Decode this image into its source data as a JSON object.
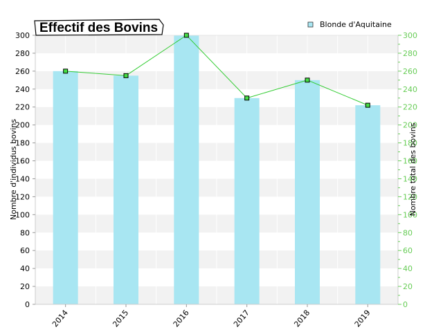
{
  "chart_data": {
    "type": "bar",
    "title": "Effectif des Bovins",
    "categories": [
      "2014",
      "2015",
      "2016",
      "2017",
      "2018",
      "2019"
    ],
    "series": [
      {
        "name": "Blonde d'Aquitaine",
        "type": "bar",
        "values": [
          260,
          255,
          300,
          230,
          250,
          222
        ]
      },
      {
        "type": "line",
        "axis": "right",
        "values": [
          260,
          255,
          300,
          230,
          250,
          222
        ]
      }
    ],
    "ylabel": "Nombre d'individus bovins",
    "y2label": "Nombre total des bovins",
    "ylim": [
      0,
      300
    ],
    "y2lim": [
      0,
      300
    ],
    "yticks": [
      "0",
      "20",
      "40",
      "60",
      "80",
      "100",
      "120",
      "140",
      "160",
      "180",
      "200",
      "220",
      "240",
      "260",
      "280",
      "300"
    ],
    "y2ticks": [
      "0",
      "20",
      "40",
      "60",
      "80",
      "100",
      "120",
      "140",
      "160",
      "180",
      "200",
      "220",
      "240",
      "260",
      "280",
      "300"
    ],
    "legend_position": "top-right",
    "grid": "alternating horizontal bands",
    "colors": {
      "bar": "#a8e6f2",
      "line": "#33cc33",
      "marker_fill": "#44dd44",
      "marker_stroke": "#000000",
      "right_axis": "#66cc55",
      "band": "#f2f2f2"
    }
  }
}
